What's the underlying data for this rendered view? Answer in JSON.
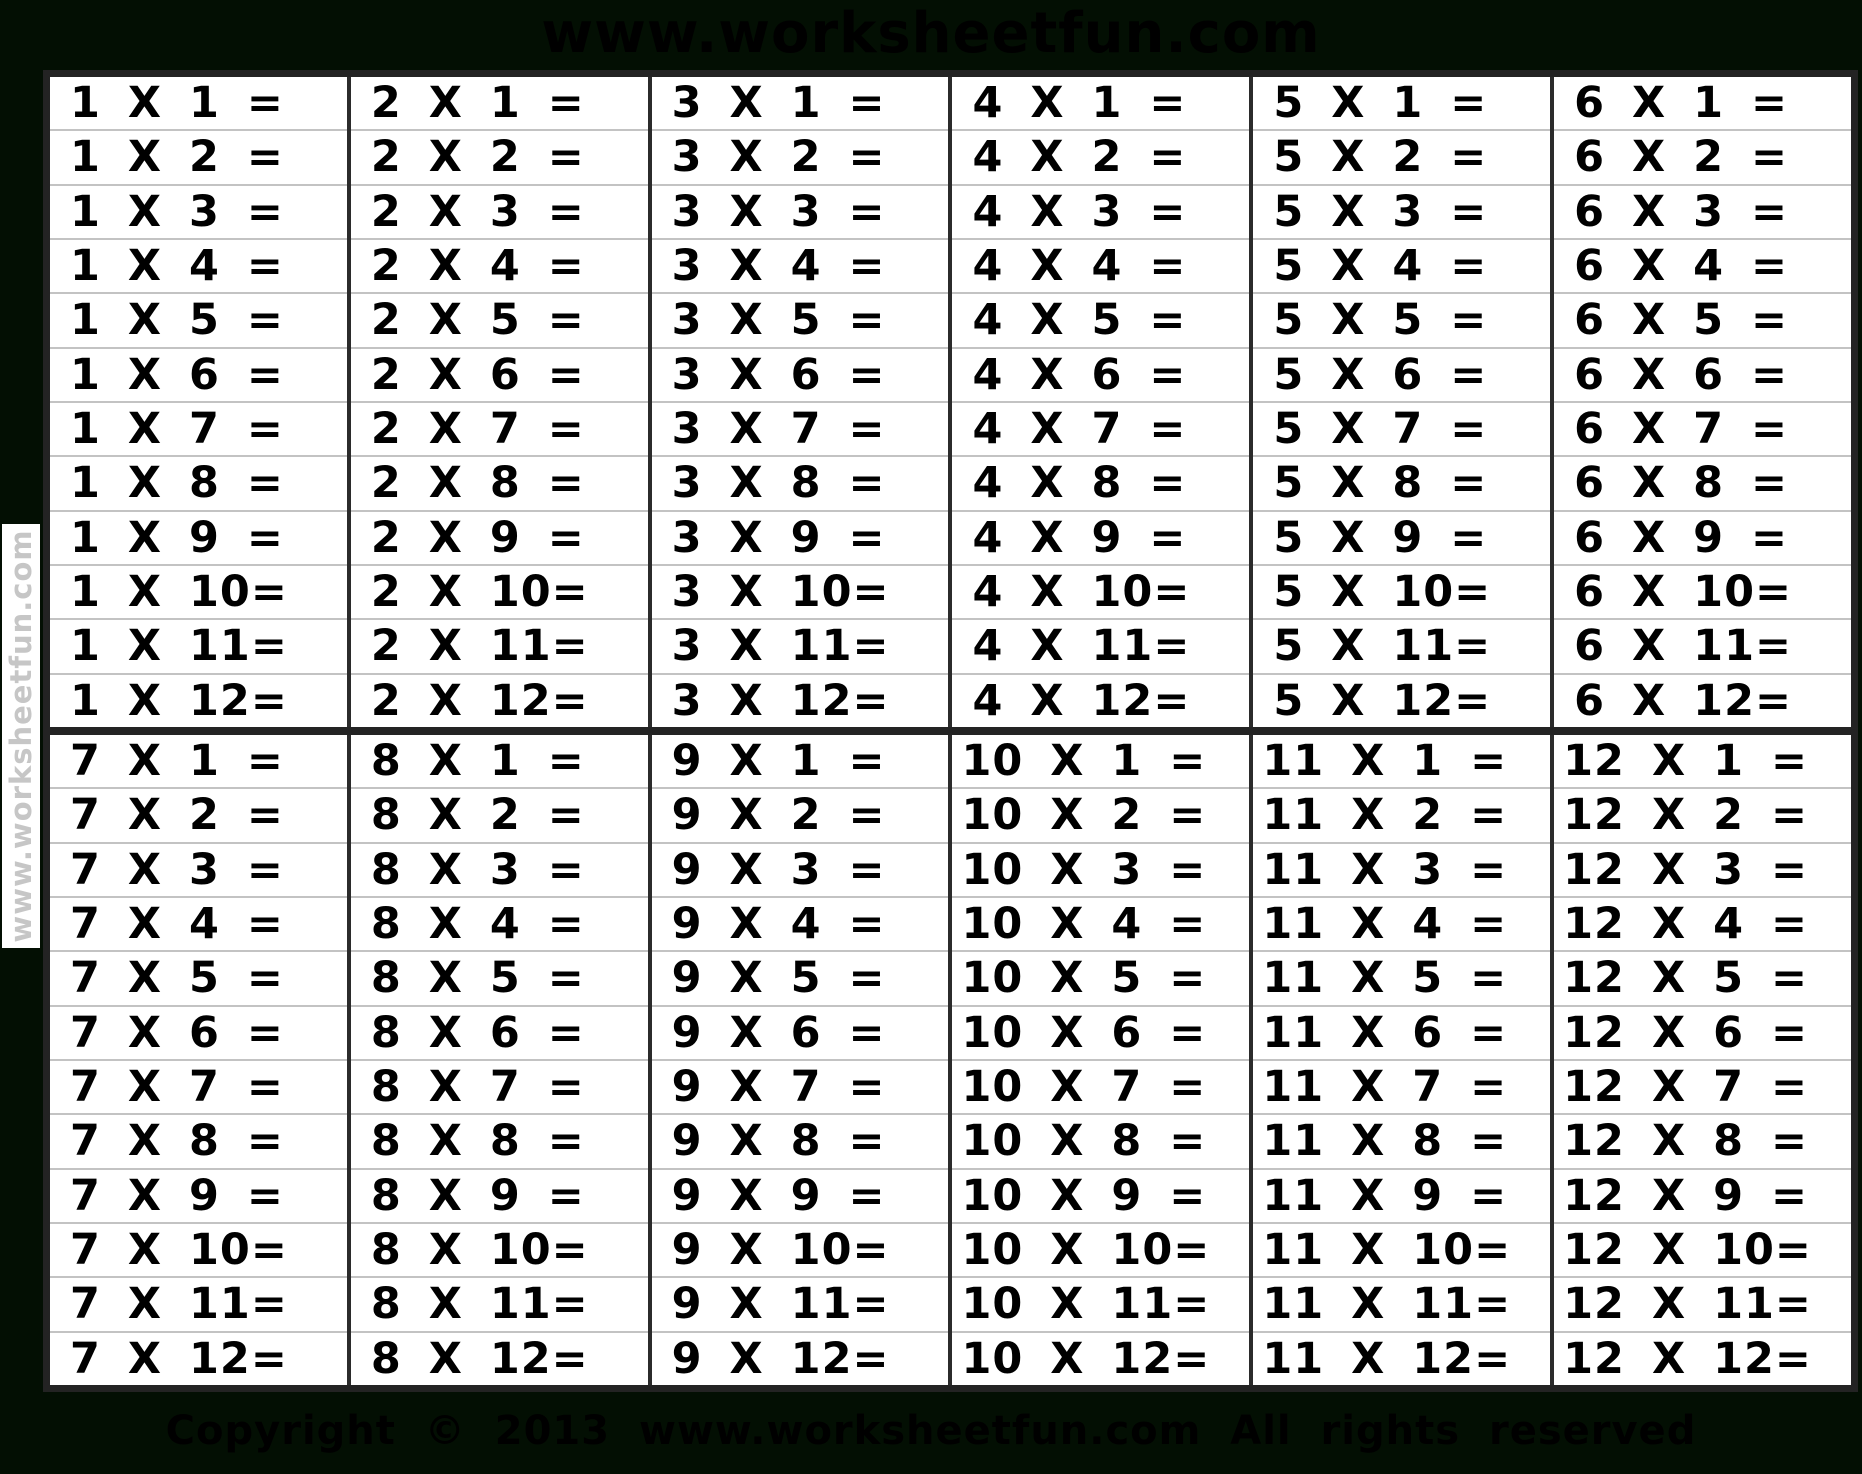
{
  "header": {
    "title": "www.worksheetfun.com"
  },
  "watermark": {
    "text": "www.worksheetfun.com"
  },
  "footer": {
    "copyright": "Copyright © 2013 www.worksheetfun.com All rights reserved"
  },
  "colors": {
    "background": "#030f03",
    "cell_background": "#ffffff",
    "text": "#000000",
    "row_line": "#c3c3c3",
    "column_line": "#2b2b2b",
    "outer_border": "#232323",
    "watermark_text": "#c6c6c6"
  },
  "table": {
    "groups": [
      {
        "tables": [
          {
            "factor": 1,
            "rows": [
              "1 X 1 =",
              "1 X 2 =",
              "1 X 3 =",
              "1 X 4 =",
              "1 X 5 =",
              "1 X 6 =",
              "1 X 7 =",
              "1 X 8 =",
              "1 X 9 =",
              "1 X 10=",
              "1 X 11=",
              "1 X 12="
            ]
          },
          {
            "factor": 2,
            "rows": [
              "2 X 1 =",
              "2 X 2 =",
              "2 X 3 =",
              "2 X 4 =",
              "2 X 5 =",
              "2 X 6 =",
              "2 X 7 =",
              "2 X 8 =",
              "2 X 9 =",
              "2 X 10=",
              "2 X 11=",
              "2 X 12="
            ]
          },
          {
            "factor": 3,
            "rows": [
              "3 X 1 =",
              "3 X 2 =",
              "3 X 3 =",
              "3 X 4 =",
              "3 X 5 =",
              "3 X 6 =",
              "3 X 7 =",
              "3 X 8 =",
              "3 X 9 =",
              "3 X 10=",
              "3 X 11=",
              "3 X 12="
            ]
          },
          {
            "factor": 4,
            "rows": [
              "4 X 1 =",
              "4 X 2 =",
              "4 X 3 =",
              "4 X 4 =",
              "4 X 5 =",
              "4 X 6 =",
              "4 X 7 =",
              "4 X 8 =",
              "4 X 9 =",
              "4 X 10=",
              "4 X 11=",
              "4 X 12="
            ]
          },
          {
            "factor": 5,
            "rows": [
              "5 X 1 =",
              "5 X 2 =",
              "5 X 3 =",
              "5 X 4 =",
              "5 X 5 =",
              "5 X 6 =",
              "5 X 7 =",
              "5 X 8 =",
              "5 X 9 =",
              "5 X 10=",
              "5 X 11=",
              "5 X 12="
            ]
          },
          {
            "factor": 6,
            "rows": [
              "6 X 1 =",
              "6 X 2 =",
              "6 X 3 =",
              "6 X 4 =",
              "6 X 5 =",
              "6 X 6 =",
              "6 X 7 =",
              "6 X 8 =",
              "6 X 9 =",
              "6 X 10=",
              "6 X 11=",
              "6 X 12="
            ]
          }
        ]
      },
      {
        "tables": [
          {
            "factor": 7,
            "rows": [
              "7 X 1 =",
              "7 X 2 =",
              "7 X 3 =",
              "7 X 4 =",
              "7 X 5 =",
              "7 X 6 =",
              "7 X 7 =",
              "7 X 8 =",
              "7 X 9 =",
              "7 X 10=",
              "7 X 11=",
              "7 X 12="
            ]
          },
          {
            "factor": 8,
            "rows": [
              "8 X 1 =",
              "8 X 2 =",
              "8 X 3 =",
              "8 X 4 =",
              "8 X 5 =",
              "8 X 6 =",
              "8 X 7 =",
              "8 X 8 =",
              "8 X 9 =",
              "8 X 10=",
              "8 X 11=",
              "8 X 12="
            ]
          },
          {
            "factor": 9,
            "rows": [
              "9 X 1 =",
              "9 X 2 =",
              "9 X 3 =",
              "9 X 4 =",
              "9 X 5 =",
              "9 X 6 =",
              "9 X 7 =",
              "9 X 8 =",
              "9 X 9 =",
              "9 X 10=",
              "9 X 11=",
              "9 X 12="
            ]
          },
          {
            "factor": 10,
            "rows": [
              "10 X 1 =",
              "10 X 2 =",
              "10 X 3 =",
              "10 X 4 =",
              "10 X 5 =",
              "10 X 6 =",
              "10 X 7 =",
              "10 X 8 =",
              "10 X 9 =",
              "10 X 10=",
              "10 X 11=",
              "10 X 12="
            ]
          },
          {
            "factor": 11,
            "rows": [
              "11 X 1 =",
              "11 X 2 =",
              "11 X 3 =",
              "11 X 4 =",
              "11 X 5 =",
              "11 X 6 =",
              "11 X 7 =",
              "11 X 8 =",
              "11 X 9 =",
              "11 X 10=",
              "11 X 11=",
              "11 X 12="
            ]
          },
          {
            "factor": 12,
            "rows": [
              "12 X 1 =",
              "12 X 2 =",
              "12 X 3 =",
              "12 X 4 =",
              "12 X 5 =",
              "12 X 6 =",
              "12 X 7 =",
              "12 X 8 =",
              "12 X 9 =",
              "12 X 10=",
              "12 X 11=",
              "12 X 12="
            ]
          }
        ]
      }
    ]
  }
}
